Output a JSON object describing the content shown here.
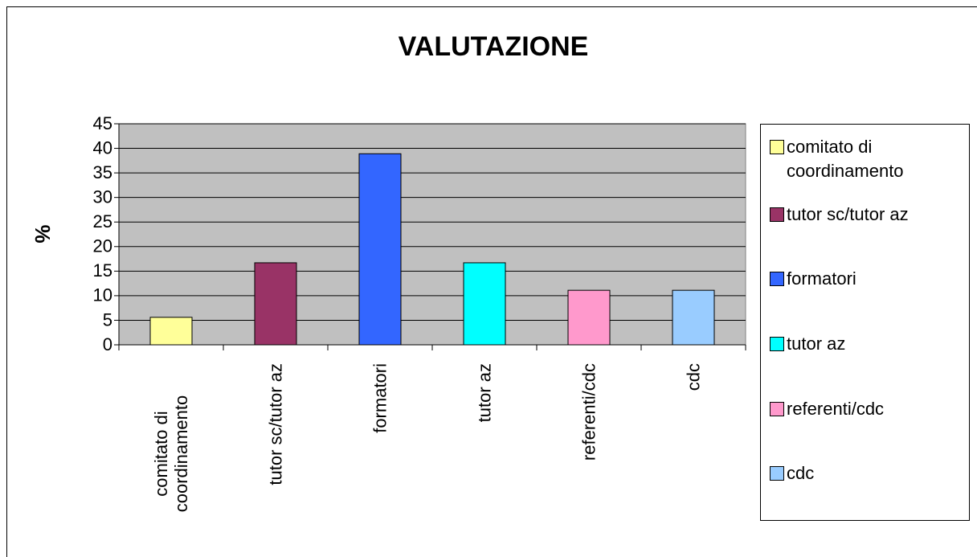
{
  "chart_data": {
    "type": "bar",
    "title": "VALUTAZIONE",
    "y_label": "%",
    "categories": [
      "comitato di coordinamento",
      "tutor sc/tutor az",
      "formatori",
      "tutor az",
      "referenti/cdc",
      "cdc"
    ],
    "values": [
      5.6,
      16.7,
      38.9,
      16.7,
      11.1,
      11.1
    ],
    "colors": [
      "#ffff99",
      "#993366",
      "#3366ff",
      "#00ffff",
      "#ff99cc",
      "#99ccff"
    ],
    "ylim": [
      0,
      45
    ],
    "yticks": [
      0,
      5,
      10,
      15,
      20,
      25,
      30,
      35,
      40,
      45
    ],
    "grid": true,
    "legend": "right"
  }
}
